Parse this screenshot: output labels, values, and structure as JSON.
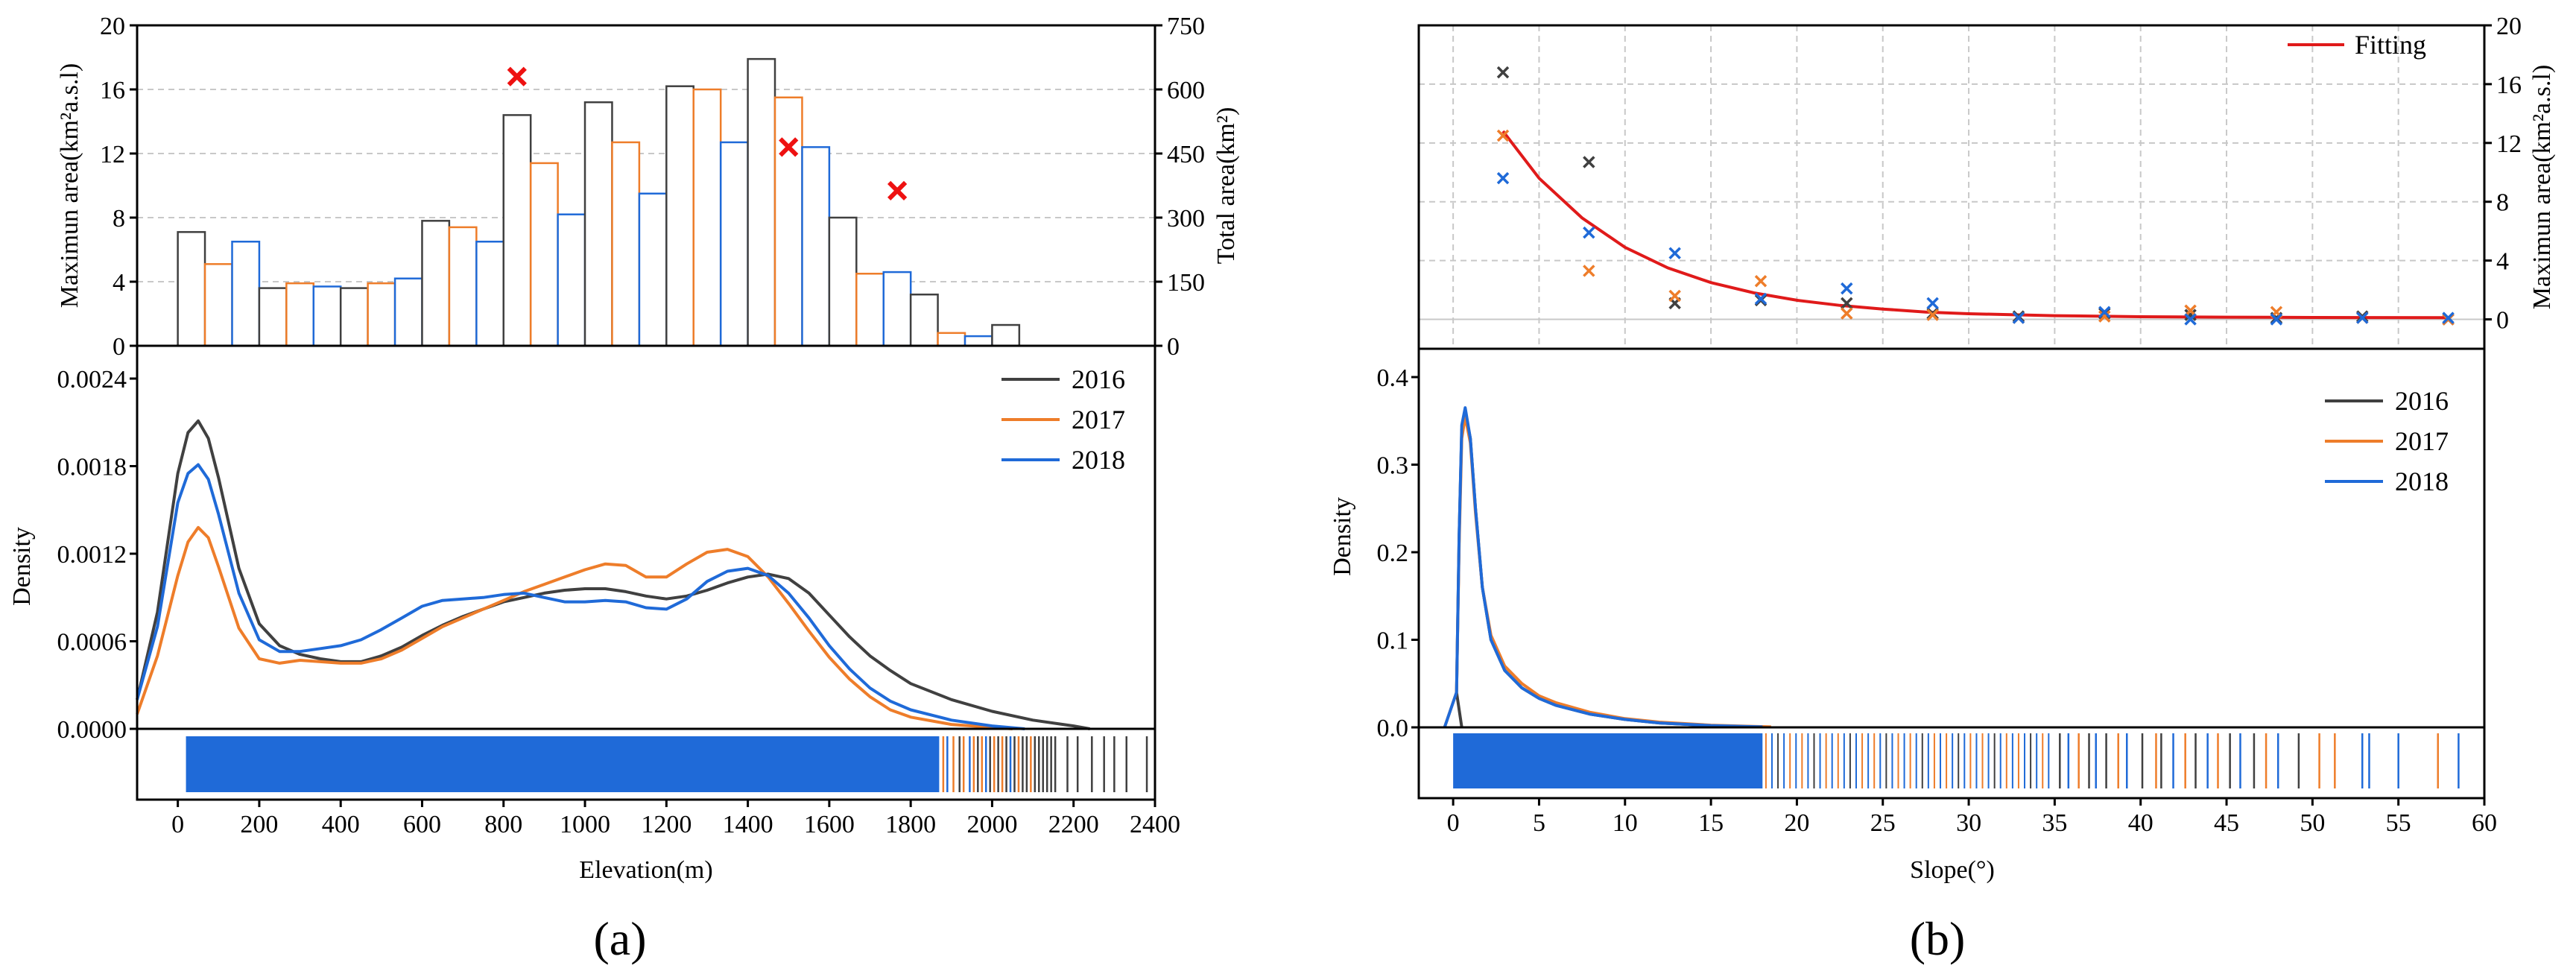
{
  "colors": {
    "y2016": "#404040",
    "y2017": "#ee7d2a",
    "y2018": "#1f6ad8",
    "fitting": "#e01a1a",
    "red_marker": "#ee1111",
    "grid": "#c8c8c8"
  },
  "panel_labels": {
    "a": "(a)",
    "b": "(b)"
  },
  "chart_data": [
    {
      "id": "a_top",
      "type": "bar",
      "ylabel_left": "Maximun area(km²a.s.l)",
      "ylabel_right": "Total area(km²)",
      "xlim": [
        -100,
        2400
      ],
      "ylim_left": [
        0,
        20
      ],
      "ylim_right": [
        0,
        750
      ],
      "yticks_left": [
        "0",
        "4",
        "8",
        "12",
        "16",
        "20"
      ],
      "yticks_right": [
        "0",
        "150",
        "300",
        "450",
        "600",
        "750"
      ],
      "bin_width": 66.67,
      "bars": [
        {
          "series": "2016",
          "x": 33.3,
          "value": 7.1
        },
        {
          "series": "2017",
          "x": 100,
          "value": 5.1
        },
        {
          "series": "2018",
          "x": 166.7,
          "value": 6.5
        },
        {
          "series": "2016",
          "x": 233.3,
          "value": 3.6
        },
        {
          "series": "2017",
          "x": 300,
          "value": 3.9
        },
        {
          "series": "2018",
          "x": 366.7,
          "value": 3.7
        },
        {
          "series": "2016",
          "x": 433.3,
          "value": 3.6
        },
        {
          "series": "2017",
          "x": 500,
          "value": 3.9
        },
        {
          "series": "2018",
          "x": 566.7,
          "value": 4.2
        },
        {
          "series": "2016",
          "x": 633.3,
          "value": 7.8
        },
        {
          "series": "2017",
          "x": 700,
          "value": 7.4
        },
        {
          "series": "2018",
          "x": 766.7,
          "value": 6.5
        },
        {
          "series": "2016",
          "x": 833.3,
          "value": 14.4
        },
        {
          "series": "2017",
          "x": 900,
          "value": 11.4
        },
        {
          "series": "2018",
          "x": 966.7,
          "value": 8.2
        },
        {
          "series": "2016",
          "x": 1033.3,
          "value": 15.2
        },
        {
          "series": "2017",
          "x": 1100,
          "value": 12.7
        },
        {
          "series": "2018",
          "x": 1166.7,
          "value": 9.5
        },
        {
          "series": "2016",
          "x": 1233.3,
          "value": 16.2
        },
        {
          "series": "2017",
          "x": 1300,
          "value": 16.0
        },
        {
          "series": "2018",
          "x": 1366.7,
          "value": 12.7
        },
        {
          "series": "2016",
          "x": 1433.3,
          "value": 17.9
        },
        {
          "series": "2017",
          "x": 1500,
          "value": 15.5
        },
        {
          "series": "2018",
          "x": 1566.7,
          "value": 12.4
        },
        {
          "series": "2016",
          "x": 1633.3,
          "value": 8.0
        },
        {
          "series": "2017",
          "x": 1700,
          "value": 4.5
        },
        {
          "series": "2018",
          "x": 1766.7,
          "value": 4.6
        },
        {
          "series": "2016",
          "x": 1833.3,
          "value": 3.2
        },
        {
          "series": "2017",
          "x": 1900,
          "value": 0.8
        },
        {
          "series": "2018",
          "x": 1966.7,
          "value": 0.6
        },
        {
          "series": "2016",
          "x": 2033.3,
          "value": 1.3
        }
      ],
      "markers": [
        {
          "x": 833,
          "total_area": 630
        },
        {
          "x": 1500,
          "total_area": 465
        },
        {
          "x": 1767,
          "total_area": 363
        }
      ]
    },
    {
      "id": "a_bottom",
      "type": "line",
      "xlabel": "Elevation(m)",
      "ylabel": "Density",
      "xlim": [
        -100,
        2400
      ],
      "ylim": [
        0,
        0.0024
      ],
      "xticks": [
        "0",
        "200",
        "400",
        "600",
        "800",
        "1000",
        "1200",
        "1400",
        "1600",
        "1800",
        "2000",
        "2200",
        "2400"
      ],
      "yticks": [
        "0.0000",
        "0.0006",
        "0.0012",
        "0.0018",
        "0.0024"
      ],
      "legend": "top-right",
      "series": [
        {
          "name": "2016",
          "x": [
            -100,
            -50,
            0,
            25,
            50,
            75,
            100,
            150,
            200,
            250,
            300,
            350,
            400,
            450,
            500,
            550,
            600,
            650,
            700,
            750,
            800,
            850,
            900,
            950,
            1000,
            1050,
            1100,
            1150,
            1200,
            1250,
            1300,
            1350,
            1400,
            1450,
            1500,
            1550,
            1600,
            1650,
            1700,
            1750,
            1800,
            1900,
            2000,
            2100,
            2200,
            2240
          ],
          "y": [
            0.0002,
            0.0008,
            0.00175,
            0.00203,
            0.00211,
            0.00199,
            0.00172,
            0.0011,
            0.00072,
            0.00057,
            0.00051,
            0.00048,
            0.00046,
            0.00046,
            0.0005,
            0.00056,
            0.00064,
            0.00071,
            0.00077,
            0.00082,
            0.00087,
            0.0009,
            0.00093,
            0.00095,
            0.00096,
            0.00096,
            0.00094,
            0.00091,
            0.00089,
            0.00091,
            0.00095,
            0.001,
            0.00104,
            0.00106,
            0.00103,
            0.00093,
            0.00078,
            0.00063,
            0.0005,
            0.0004,
            0.00031,
            0.0002,
            0.00012,
            6e-05,
            2e-05,
            0.0
          ]
        },
        {
          "name": "2017",
          "x": [
            -100,
            -50,
            0,
            25,
            50,
            75,
            100,
            150,
            200,
            250,
            300,
            350,
            400,
            450,
            500,
            550,
            600,
            650,
            700,
            750,
            800,
            850,
            900,
            950,
            1000,
            1050,
            1100,
            1150,
            1200,
            1250,
            1300,
            1350,
            1400,
            1450,
            1500,
            1550,
            1600,
            1650,
            1700,
            1750,
            1800,
            1900,
            2000,
            2050
          ],
          "y": [
            0.0001,
            0.0005,
            0.00105,
            0.00128,
            0.00138,
            0.00131,
            0.00111,
            0.00069,
            0.00048,
            0.00045,
            0.00047,
            0.00046,
            0.00045,
            0.00045,
            0.00048,
            0.00054,
            0.00062,
            0.0007,
            0.00076,
            0.00082,
            0.00088,
            0.00094,
            0.00099,
            0.00104,
            0.00109,
            0.00113,
            0.00112,
            0.00104,
            0.00104,
            0.00113,
            0.00121,
            0.00123,
            0.00118,
            0.00104,
            0.00086,
            0.00067,
            0.00049,
            0.00034,
            0.00022,
            0.00013,
            8e-05,
            3e-05,
            1e-05,
            0.0
          ]
        },
        {
          "name": "2018",
          "x": [
            -100,
            -50,
            0,
            25,
            50,
            75,
            100,
            150,
            200,
            250,
            300,
            350,
            400,
            450,
            500,
            550,
            600,
            650,
            700,
            750,
            800,
            850,
            900,
            950,
            1000,
            1050,
            1100,
            1150,
            1200,
            1250,
            1300,
            1350,
            1400,
            1450,
            1500,
            1550,
            1600,
            1650,
            1700,
            1750,
            1800,
            1900,
            2000,
            2080
          ],
          "y": [
            0.0002,
            0.0007,
            0.00155,
            0.00175,
            0.00181,
            0.00171,
            0.00147,
            0.00093,
            0.00061,
            0.00053,
            0.00053,
            0.00055,
            0.00057,
            0.00061,
            0.00068,
            0.00076,
            0.00084,
            0.00088,
            0.00089,
            0.0009,
            0.00092,
            0.00093,
            0.0009,
            0.00087,
            0.00087,
            0.00088,
            0.00087,
            0.00083,
            0.00082,
            0.00089,
            0.00101,
            0.00108,
            0.0011,
            0.00105,
            0.00093,
            0.00076,
            0.00057,
            0.00041,
            0.00028,
            0.00019,
            0.00013,
            6e-05,
            2e-05,
            0.0
          ]
        }
      ],
      "rug_extent": [
        0,
        2400
      ]
    },
    {
      "id": "b_top",
      "type": "scatter",
      "ylabel_right": "Maximun area(km²a.s.l)",
      "xlim": [
        -2,
        60
      ],
      "ylim": [
        -2,
        20
      ],
      "yticks_right": [
        "0",
        "4",
        "8",
        "12",
        "16",
        "20"
      ],
      "legend": "top-right",
      "series": [
        {
          "name": "2016",
          "x": [
            2.9,
            7.9,
            12.9,
            17.9,
            22.9,
            27.9,
            32.9,
            37.9,
            42.9,
            47.9,
            52.9,
            57.9
          ],
          "y": [
            16.8,
            10.7,
            1.1,
            1.3,
            1.1,
            0.4,
            0.2,
            0.4,
            0.3,
            0.1,
            0.2,
            0.0
          ]
        },
        {
          "name": "2017",
          "x": [
            2.9,
            7.9,
            12.9,
            17.9,
            22.9,
            27.9,
            32.9,
            37.9,
            42.9,
            47.9,
            52.9,
            57.9
          ],
          "y": [
            12.5,
            3.3,
            1.6,
            2.6,
            0.4,
            0.3,
            0.1,
            0.2,
            0.6,
            0.5,
            0.1,
            0.0
          ]
        },
        {
          "name": "2018",
          "x": [
            2.9,
            7.9,
            12.9,
            17.9,
            22.9,
            27.9,
            32.9,
            37.9,
            42.9,
            47.9,
            52.9,
            57.9
          ],
          "y": [
            9.6,
            5.9,
            4.5,
            1.4,
            2.1,
            1.1,
            0.1,
            0.5,
            0.0,
            0.0,
            0.1,
            0.1
          ]
        },
        {
          "name": "Fitting",
          "type": "line",
          "x": [
            2.9,
            5,
            7.5,
            10,
            12.5,
            15,
            17.5,
            20,
            22.5,
            25,
            27.5,
            30,
            35,
            40,
            45,
            50,
            57.9
          ],
          "y": [
            12.8,
            9.6,
            6.9,
            4.9,
            3.5,
            2.5,
            1.8,
            1.3,
            0.95,
            0.7,
            0.5,
            0.38,
            0.25,
            0.18,
            0.15,
            0.13,
            0.12
          ]
        }
      ]
    },
    {
      "id": "b_bottom",
      "type": "line",
      "xlabel": "Slope(°)",
      "ylabel": "Density",
      "xlim": [
        -2,
        60
      ],
      "ylim": [
        0,
        0.4
      ],
      "xticks": [
        "0",
        "5",
        "10",
        "15",
        "20",
        "25",
        "30",
        "35",
        "40",
        "45",
        "50",
        "55",
        "60"
      ],
      "yticks": [
        "0.0",
        "0.1",
        "0.2",
        "0.3",
        "0.4"
      ],
      "legend": "top-right",
      "series": [
        {
          "name": "2016",
          "x": [
            0.5,
            0.2,
            0.35,
            0.5,
            0.7,
            1.0,
            1.3,
            1.7,
            2.2,
            3.0,
            4.0,
            5.0,
            6.0,
            8.0,
            10.0,
            12.0,
            15.0,
            18.0
          ],
          "y": [
            0.0,
            0.04,
            0.22,
            0.34,
            0.36,
            0.33,
            0.25,
            0.16,
            0.1,
            0.065,
            0.045,
            0.033,
            0.025,
            0.015,
            0.009,
            0.005,
            0.002,
            0.0005
          ]
        },
        {
          "name": "2017",
          "x": [
            -0.5,
            0.2,
            0.35,
            0.5,
            0.7,
            1.0,
            1.3,
            1.7,
            2.2,
            3.0,
            4.0,
            5.0,
            6.0,
            8.0,
            10.0,
            12.0,
            15.0,
            18.5
          ],
          "y": [
            0.0,
            0.04,
            0.21,
            0.33,
            0.355,
            0.325,
            0.245,
            0.16,
            0.105,
            0.07,
            0.05,
            0.036,
            0.028,
            0.017,
            0.01,
            0.006,
            0.0025,
            0.0005
          ]
        },
        {
          "name": "2018",
          "x": [
            -0.5,
            0.2,
            0.35,
            0.5,
            0.7,
            1.0,
            1.3,
            1.7,
            2.2,
            3.0,
            4.0,
            5.0,
            6.0,
            8.0,
            10.0,
            12.0,
            15.0,
            18.0
          ],
          "y": [
            0.0,
            0.04,
            0.22,
            0.345,
            0.365,
            0.33,
            0.25,
            0.16,
            0.1,
            0.065,
            0.045,
            0.033,
            0.025,
            0.015,
            0.009,
            0.005,
            0.002,
            0.0005
          ]
        }
      ],
      "rug_extent": [
        0,
        58.5
      ]
    }
  ]
}
